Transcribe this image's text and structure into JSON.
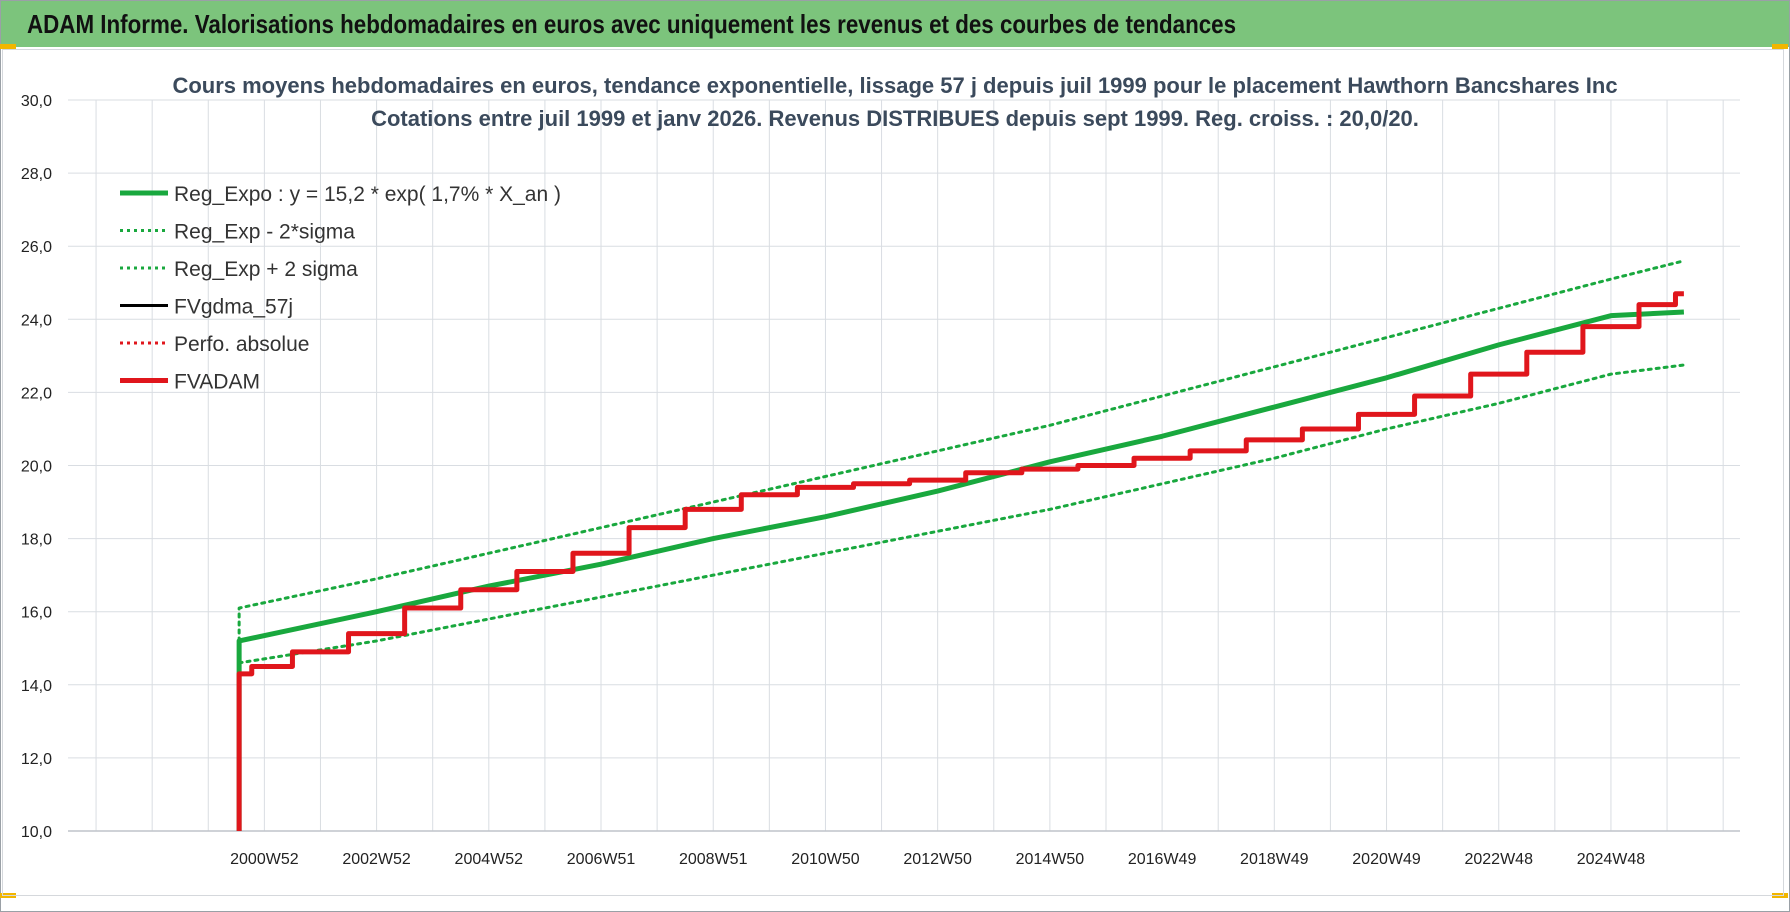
{
  "banner": {
    "title": "ADAM Informe. Valorisations hebdomadaires en euros avec uniquement les revenus et des courbes de tendances"
  },
  "colors": {
    "banner": "#7cc47c",
    "green": "#19a83e",
    "green_dotted": "#19a83e",
    "red": "#e0161c",
    "black": "#000000",
    "grid": "#d9dde2",
    "title": "#3b4a5c"
  },
  "chart_data": {
    "type": "line",
    "title": "Cours moyens hebdomadaires en euros, tendance exponentielle, lissage 57 j depuis juil 1999 pour le placement Hawthorn Bancshares Inc",
    "subtitle": "Cotations entre juil 1999 et janv 2026. Revenus DISTRIBUES depuis sept 1999. Reg. croiss. : 20,0/20.",
    "xlabel": "",
    "ylabel": "",
    "ylim": [
      10,
      30
    ],
    "xlim": [
      1996.5,
      2026.3
    ],
    "y_ticks": [
      "10,0",
      "12,0",
      "14,0",
      "16,0",
      "18,0",
      "20,0",
      "22,0",
      "24,0",
      "26,0",
      "28,0",
      "30,0"
    ],
    "x_ticks": [
      {
        "label": "2000W52",
        "x": 2000.0
      },
      {
        "label": "2002W52",
        "x": 2002.0
      },
      {
        "label": "2004W52",
        "x": 2004.0
      },
      {
        "label": "2006W51",
        "x": 2006.0
      },
      {
        "label": "2008W51",
        "x": 2008.0
      },
      {
        "label": "2010W50",
        "x": 2010.0
      },
      {
        "label": "2012W50",
        "x": 2012.0
      },
      {
        "label": "2014W50",
        "x": 2014.0
      },
      {
        "label": "2016W49",
        "x": 2016.0
      },
      {
        "label": "2018W49",
        "x": 2018.0
      },
      {
        "label": "2020W49",
        "x": 2020.0
      },
      {
        "label": "2022W48",
        "x": 2022.0
      },
      {
        "label": "2024W48",
        "x": 2024.0
      }
    ],
    "grid": true,
    "legend_position": "top-left",
    "series": [
      {
        "name": "Reg_Expo : y = 15,2 * exp( 1,7% *  X_an )",
        "color": "#19a83e",
        "style": "solid",
        "width": 5,
        "x": [
          1999.55,
          1999.55,
          2002,
          2004,
          2006,
          2008,
          2010,
          2012,
          2014,
          2016,
          2018,
          2020,
          2022,
          2024,
          2025.3
        ],
        "y": [
          10.0,
          15.2,
          16.0,
          16.7,
          17.3,
          18.0,
          18.6,
          19.3,
          20.1,
          20.8,
          21.6,
          22.4,
          23.3,
          24.1,
          24.2
        ]
      },
      {
        "name": "Reg_Exp - 2*sigma",
        "color": "#19a83e",
        "style": "dotted",
        "width": 3,
        "x": [
          1999.55,
          2002,
          2004,
          2006,
          2008,
          2010,
          2012,
          2014,
          2016,
          2018,
          2020,
          2022,
          2024,
          2025.3
        ],
        "y": [
          14.6,
          15.2,
          15.8,
          16.4,
          17.0,
          17.6,
          18.2,
          18.8,
          19.5,
          20.2,
          21.0,
          21.7,
          22.5,
          22.75
        ]
      },
      {
        "name": "Reg_Exp + 2 sigma",
        "color": "#19a83e",
        "style": "dotted",
        "width": 3,
        "x": [
          1999.55,
          1999.55,
          2002,
          2004,
          2006,
          2008,
          2010,
          2012,
          2014,
          2016,
          2018,
          2020,
          2022,
          2024,
          2025.3
        ],
        "y": [
          15.2,
          16.1,
          16.9,
          17.6,
          18.3,
          19.0,
          19.7,
          20.4,
          21.1,
          21.9,
          22.7,
          23.5,
          24.3,
          25.1,
          25.6
        ]
      },
      {
        "name": "FVgdma_57j",
        "color": "#000000",
        "style": "solid",
        "width": 3,
        "x": [],
        "y": []
      },
      {
        "name": "Perfo. absolue",
        "color": "#e0161c",
        "style": "dotted",
        "width": 2,
        "x": [],
        "y": []
      },
      {
        "name": "FVADAM",
        "color": "#e0161c",
        "style": "solid",
        "width": 5,
        "x": [
          1999.55,
          1999.55,
          2000,
          2001,
          2002,
          2003,
          2004,
          2005,
          2006,
          2007,
          2008,
          2009,
          2010,
          2011,
          2012,
          2013,
          2014,
          2015,
          2016,
          2017,
          2018,
          2019,
          2020,
          2021,
          2022,
          2023,
          2024,
          2025,
          2025.3
        ],
        "y": [
          10.0,
          14.3,
          14.5,
          14.9,
          15.4,
          16.1,
          16.6,
          17.1,
          17.6,
          18.3,
          18.8,
          19.2,
          19.4,
          19.5,
          19.6,
          19.8,
          19.9,
          20.0,
          20.2,
          20.4,
          20.7,
          21.0,
          21.4,
          21.9,
          22.5,
          23.1,
          23.8,
          24.4,
          24.7
        ]
      }
    ]
  }
}
